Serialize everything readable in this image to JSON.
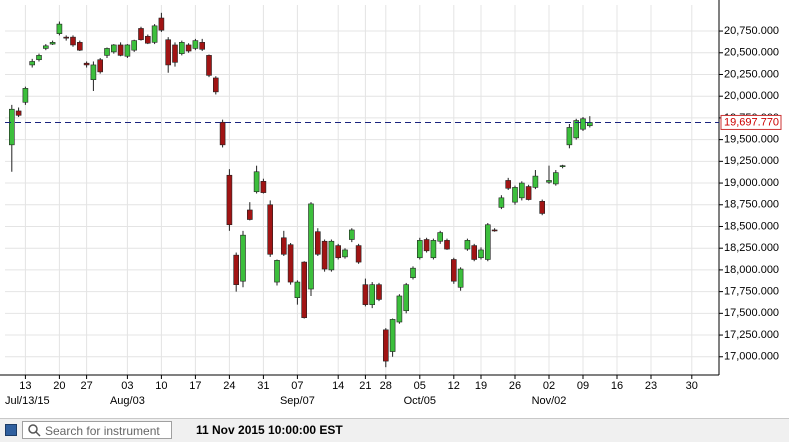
{
  "chart_data": {
    "type": "candlestick",
    "open": [
      19440,
      19830,
      19930,
      20360,
      20420,
      20550,
      20600,
      20720,
      20680,
      20680,
      20620,
      20380,
      20190,
      20420,
      20470,
      20510,
      20590,
      20460,
      20530,
      20780,
      20690,
      20620,
      20900,
      20650,
      20590,
      20490,
      20590,
      20550,
      20620,
      20470,
      20210,
      19700,
      19090,
      18170,
      17870,
      18690,
      18900,
      19020,
      18750,
      17860,
      18370,
      18290,
      17680,
      18090,
      17780,
      18440,
      18330,
      18000,
      18280,
      18150,
      18350,
      18280,
      17830,
      17600,
      17830,
      17310,
      17060,
      17400,
      17530,
      17910,
      18140,
      18350,
      18140,
      18330,
      18340,
      18120,
      17800,
      18240,
      18280,
      18140,
      18120,
      18460,
      18720,
      19030,
      18780,
      18830,
      18960,
      18950,
      18790,
      19010,
      18990,
      19190,
      19440,
      19520,
      19620,
      19660
    ],
    "high": [
      19900,
      19870,
      20110,
      20430,
      20490,
      20600,
      20640,
      20860,
      20700,
      20700,
      20640,
      20400,
      20400,
      20440,
      20560,
      20600,
      20620,
      20600,
      20650,
      20800,
      20710,
      20830,
      20960,
      20680,
      20620,
      20640,
      20610,
      20660,
      20660,
      20480,
      20230,
      19730,
      19160,
      18200,
      18450,
      18780,
      19200,
      19050,
      18800,
      18120,
      18450,
      18310,
      17880,
      18100,
      18780,
      18480,
      18350,
      18350,
      18300,
      18250,
      18480,
      18300,
      17900,
      17860,
      17850,
      17330,
      17440,
      17720,
      17850,
      18040,
      18370,
      18370,
      18360,
      18450,
      18360,
      18140,
      18030,
      18360,
      18300,
      18260,
      18540,
      18480,
      18860,
      19060,
      18970,
      19020,
      18980,
      19150,
      18810,
      19200,
      19150,
      19210,
      19680,
      19740,
      19760,
      19770
    ],
    "low": [
      19130,
      19760,
      19900,
      20330,
      20400,
      20530,
      20590,
      20700,
      20640,
      20570,
      20520,
      20330,
      20060,
      20260,
      20440,
      20490,
      20460,
      20440,
      20510,
      20640,
      20600,
      20600,
      20740,
      20270,
      20340,
      20470,
      20500,
      20530,
      20520,
      20220,
      20020,
      19410,
      18450,
      17750,
      17800,
      18570,
      18880,
      18880,
      18150,
      17820,
      18160,
      17830,
      17600,
      17440,
      17700,
      18160,
      17980,
      17980,
      18120,
      18130,
      18320,
      18070,
      17580,
      17560,
      17640,
      16880,
      17000,
      17380,
      17500,
      17890,
      18120,
      18200,
      18120,
      18300,
      18230,
      17840,
      17760,
      18220,
      18100,
      18120,
      18100,
      18440,
      18700,
      18920,
      18750,
      18800,
      18800,
      18930,
      18630,
      18990,
      18970,
      19170,
      19400,
      19500,
      19600,
      19640
    ],
    "close": [
      19850,
      19780,
      20090,
      20400,
      20470,
      20580,
      20620,
      20830,
      20670,
      20590,
      20530,
      20360,
      20360,
      20280,
      20550,
      20590,
      20470,
      20590,
      20640,
      20650,
      20610,
      20810,
      20760,
      20360,
      20390,
      20620,
      20520,
      20640,
      20540,
      20240,
      20050,
      19440,
      18520,
      17830,
      18400,
      18580,
      19130,
      18890,
      18180,
      18110,
      18180,
      17860,
      17860,
      17450,
      18760,
      18180,
      18010,
      18330,
      18140,
      18230,
      18460,
      18090,
      17600,
      17830,
      17660,
      16950,
      17430,
      17700,
      17830,
      18020,
      18340,
      18220,
      18340,
      18430,
      18240,
      17870,
      18010,
      18340,
      18120,
      18230,
      18520,
      18450,
      18830,
      18940,
      18950,
      19000,
      18810,
      19080,
      18650,
      19030,
      19120,
      19200,
      19640,
      19720,
      19740,
      19697.77
    ],
    "up_color": "#3cbf3c",
    "down_color": "#a11414",
    "last_price": {
      "value": 19697.77,
      "label": "19,697.770"
    },
    "xlim": [
      -1,
      104
    ],
    "xticks": [
      {
        "value": 2,
        "label": "13"
      },
      {
        "value": 7,
        "label": "20"
      },
      {
        "value": 11,
        "label": "27"
      },
      {
        "value": 17,
        "label": "03"
      },
      {
        "value": 22,
        "label": "10"
      },
      {
        "value": 27,
        "label": "17"
      },
      {
        "value": 32,
        "label": "24"
      },
      {
        "value": 37,
        "label": "31"
      },
      {
        "value": 42,
        "label": "07"
      },
      {
        "value": 48,
        "label": "14"
      },
      {
        "value": 52,
        "label": "21"
      },
      {
        "value": 55,
        "label": "28"
      },
      {
        "value": 60,
        "label": "05"
      },
      {
        "value": 65,
        "label": "12"
      },
      {
        "value": 69,
        "label": "19"
      },
      {
        "value": 74,
        "label": "26"
      },
      {
        "value": 79,
        "label": "02"
      },
      {
        "value": 84,
        "label": "09"
      },
      {
        "value": 89,
        "label": "16"
      },
      {
        "value": 94,
        "label": "23"
      },
      {
        "value": 100,
        "label": "30"
      }
    ],
    "month_ticks": [
      {
        "value": 2,
        "label": "Jul/13/15"
      },
      {
        "value": 17,
        "label": "Aug/03"
      },
      {
        "value": 42,
        "label": "Sep/07"
      },
      {
        "value": 60,
        "label": "Oct/05"
      },
      {
        "value": 79,
        "label": "Nov/02"
      }
    ],
    "ylim": [
      16790,
      21050
    ],
    "yticks": [
      {
        "value": 17000,
        "label": "17,000.000"
      },
      {
        "value": 17250,
        "label": "17,250.000"
      },
      {
        "value": 17500,
        "label": "17,500.000"
      },
      {
        "value": 17750,
        "label": "17,750.000"
      },
      {
        "value": 18000,
        "label": "18,000.000"
      },
      {
        "value": 18250,
        "label": "18,250.000"
      },
      {
        "value": 18500,
        "label": "18,500.000"
      },
      {
        "value": 18750,
        "label": "18,750.000"
      },
      {
        "value": 19000,
        "label": "19,000.000"
      },
      {
        "value": 19250,
        "label": "19,250.000"
      },
      {
        "value": 19500,
        "label": "19,500.000"
      },
      {
        "value": 19750,
        "label": "19,750.000"
      },
      {
        "value": 20000,
        "label": "20,000.000"
      },
      {
        "value": 20250,
        "label": "20,250.000"
      },
      {
        "value": 20500,
        "label": "20,500.000"
      },
      {
        "value": 20750,
        "label": "20,750.000"
      }
    ],
    "grid": true
  },
  "toolbar": {
    "search_placeholder": "Search for instrument",
    "timestamp": "11 Nov 2015 10:00:00 EST"
  }
}
